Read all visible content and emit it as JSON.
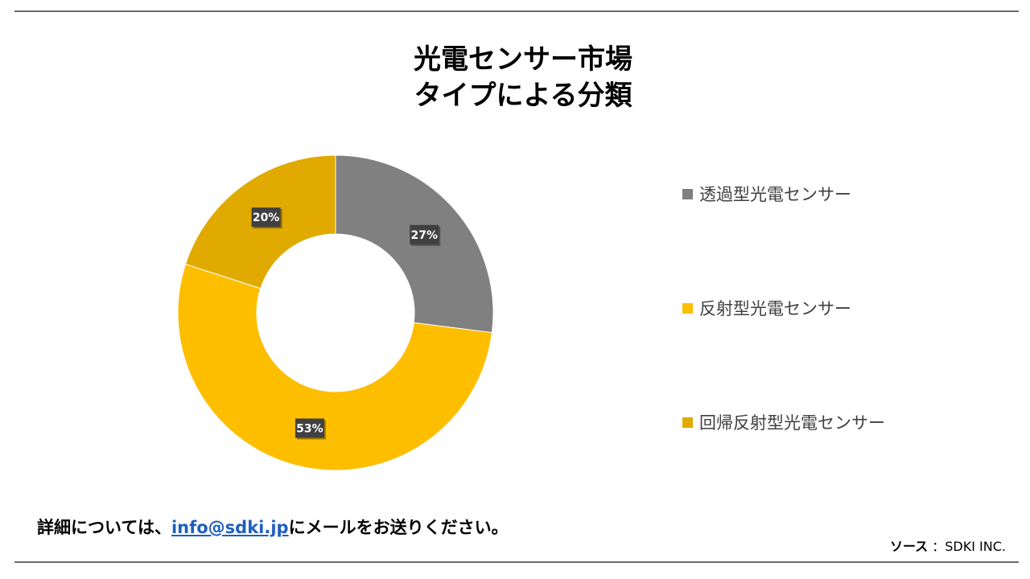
{
  "title": {
    "line1": "光電センサー市場",
    "line2": "タイプによる分類"
  },
  "chart_data": {
    "type": "pie",
    "donut": true,
    "categories": [
      "透過型光電センサー",
      "反射型光電センサー",
      "回帰反射型光電センサー"
    ],
    "values": [
      27,
      53,
      20
    ],
    "labels": [
      "27%",
      "53%",
      "20%"
    ],
    "colors": [
      "#808080",
      "#fdbe00",
      "#e0aa00"
    ],
    "legend_position": "right"
  },
  "footer": {
    "note_before": "詳細については、",
    "email": "info@sdki.jp",
    "note_after": "にメールをお送りください。",
    "source_label": "ソース",
    "source_value": "：SDKI INC."
  }
}
